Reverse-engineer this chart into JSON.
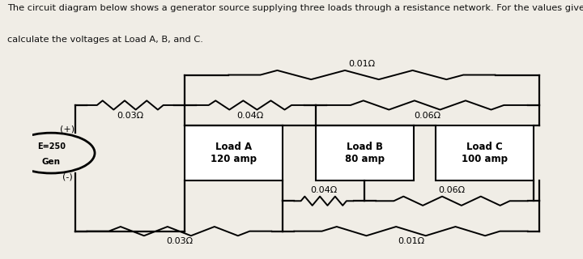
{
  "title_line1": "The circuit diagram below shows a generator source supplying three loads through a resistance network. For the values given",
  "title_line2": "calculate the voltages at Load A, B, and C.",
  "fig_bg": "#f0ede6",
  "diagram_bg": "#ccc8be",
  "text_color": "#111111",
  "res_top_main": [
    "0.03Ω",
    "0.04Ω",
    "0.06Ω"
  ],
  "res_top_bypass": "0.01Ω",
  "res_bot_main": [
    "0.03Ω",
    "0.01Ω"
  ],
  "res_bot_mid": [
    "0.04Ω",
    "0.06Ω"
  ],
  "load_labels": [
    "Load A\n120 amp",
    "Load B\n80 amp",
    "Load C\n100 amp"
  ],
  "gen_emf": "E=250",
  "gen_word": "Gen",
  "plus_label": "(+)",
  "minus_label": "(-)"
}
